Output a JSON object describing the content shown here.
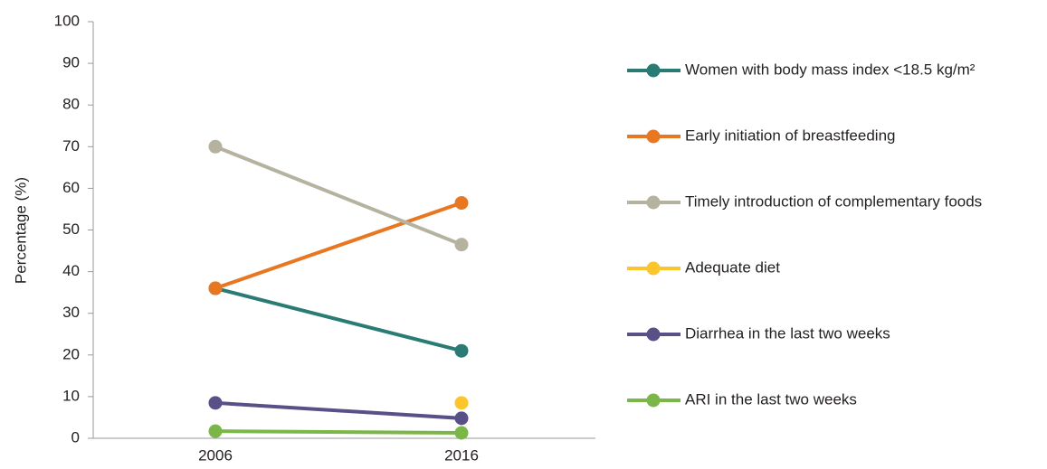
{
  "chart_data": {
    "type": "line",
    "y_label": "Percentage (%)",
    "categories": [
      "2006",
      "2016"
    ],
    "series": [
      {
        "name": "Women with body mass index <18.5 kg/m²",
        "color": "#2a7b74",
        "values": [
          36,
          21
        ]
      },
      {
        "name": "Early initiation of breastfeeding",
        "color": "#e87722",
        "values": [
          36,
          56.5
        ]
      },
      {
        "name": "Timely introduction of complementary foods",
        "color": "#b5b3a0",
        "values": [
          70,
          46.5
        ]
      },
      {
        "name": "Adequate diet",
        "color": "#fcc52c",
        "values": [
          null,
          8.5
        ]
      },
      {
        "name": "Diarrhea in the last two weeks",
        "color": "#5a5088",
        "values": [
          8.5,
          4.8
        ]
      },
      {
        "name": "ARI in the last two weeks",
        "color": "#7ab648",
        "values": [
          1.7,
          1.3
        ]
      }
    ],
    "ylim": [
      0,
      100
    ],
    "yticks": [
      0,
      10,
      20,
      30,
      40,
      50,
      60,
      70,
      80,
      90,
      100
    ],
    "grid": false,
    "legend": "right"
  }
}
